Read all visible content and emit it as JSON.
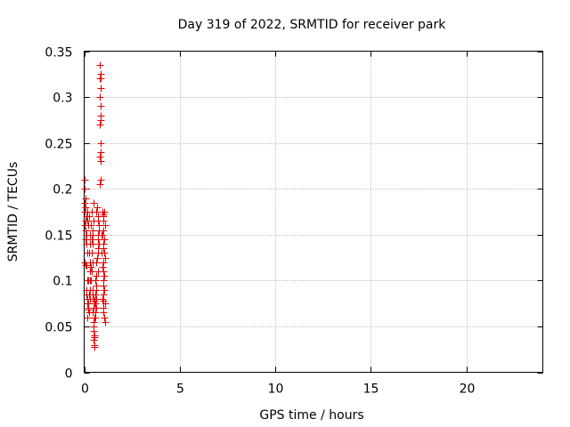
{
  "chart_data": {
    "type": "scatter",
    "title": "Day 319 of 2022, SRMTID for receiver park",
    "xlabel": "GPS time / hours",
    "ylabel": "SRMTID / TECUs",
    "xlim": [
      0,
      24
    ],
    "ylim": [
      0,
      0.35
    ],
    "xticks": [
      0,
      5,
      10,
      15,
      20
    ],
    "yticks": [
      0,
      0.05,
      0.1,
      0.15,
      0.2,
      0.25,
      0.3,
      0.35
    ],
    "xtick_labels": [
      "0",
      "5",
      "10",
      "15",
      "20"
    ],
    "ytick_labels": [
      "0",
      "0.05",
      "0.1",
      "0.15",
      "0.2",
      "0.25",
      "0.3",
      "0.35"
    ],
    "grid": true,
    "marker": "+",
    "color": "#e00000",
    "series": [
      {
        "points": [
          [
            0.02,
            0.21
          ],
          [
            0.03,
            0.2
          ],
          [
            0.05,
            0.19
          ],
          [
            0.03,
            0.185
          ],
          [
            0.08,
            0.18
          ],
          [
            0.02,
            0.175
          ],
          [
            0.1,
            0.17
          ],
          [
            0.05,
            0.165
          ],
          [
            0.03,
            0.16
          ],
          [
            0.08,
            0.155
          ],
          [
            0.1,
            0.15
          ],
          [
            0.05,
            0.145
          ],
          [
            0.12,
            0.14
          ],
          [
            0.15,
            0.13
          ],
          [
            0.02,
            0.12
          ],
          [
            0.05,
            0.117
          ],
          [
            0.1,
            0.117
          ],
          [
            0.15,
            0.1
          ],
          [
            0.2,
            0.1
          ],
          [
            0.1,
            0.09
          ],
          [
            0.12,
            0.085
          ],
          [
            0.15,
            0.08
          ],
          [
            0.18,
            0.075
          ],
          [
            0.2,
            0.07
          ],
          [
            0.22,
            0.068
          ],
          [
            0.25,
            0.065
          ],
          [
            0.15,
            0.06
          ],
          [
            0.2,
            0.075
          ],
          [
            0.3,
            0.08
          ],
          [
            0.25,
            0.085
          ],
          [
            0.3,
            0.09
          ],
          [
            0.35,
            0.1
          ],
          [
            0.4,
            0.11
          ],
          [
            0.35,
            0.115
          ],
          [
            0.45,
            0.12
          ],
          [
            0.4,
            0.13
          ],
          [
            0.45,
            0.14
          ],
          [
            0.38,
            0.145
          ],
          [
            0.42,
            0.15
          ],
          [
            0.45,
            0.155
          ],
          [
            0.35,
            0.16
          ],
          [
            0.5,
            0.165
          ],
          [
            0.4,
            0.175
          ],
          [
            0.48,
            0.185
          ],
          [
            0.42,
            0.09
          ],
          [
            0.45,
            0.085
          ],
          [
            0.5,
            0.08
          ],
          [
            0.52,
            0.078
          ],
          [
            0.55,
            0.075
          ],
          [
            0.5,
            0.07
          ],
          [
            0.45,
            0.065
          ],
          [
            0.55,
            0.06
          ],
          [
            0.5,
            0.055
          ],
          [
            0.48,
            0.05
          ],
          [
            0.5,
            0.045
          ],
          [
            0.52,
            0.04
          ],
          [
            0.55,
            0.038
          ],
          [
            0.5,
            0.035
          ],
          [
            0.52,
            0.03
          ],
          [
            0.55,
            0.028
          ],
          [
            0.6,
            0.085
          ],
          [
            0.62,
            0.08
          ],
          [
            0.65,
            0.09
          ],
          [
            0.6,
            0.1
          ],
          [
            0.65,
            0.105
          ],
          [
            0.7,
            0.11
          ],
          [
            0.62,
            0.12
          ],
          [
            0.68,
            0.125
          ],
          [
            0.7,
            0.13
          ],
          [
            0.72,
            0.135
          ],
          [
            0.75,
            0.14
          ],
          [
            0.7,
            0.145
          ],
          [
            0.72,
            0.15
          ],
          [
            0.75,
            0.155
          ],
          [
            0.78,
            0.16
          ],
          [
            0.7,
            0.165
          ],
          [
            0.72,
            0.17
          ],
          [
            0.65,
            0.175
          ],
          [
            0.68,
            0.18
          ],
          [
            0.65,
            0.095
          ],
          [
            0.6,
            0.075
          ],
          [
            0.62,
            0.07
          ],
          [
            0.58,
            0.065
          ],
          [
            0.6,
            0.06
          ],
          [
            0.8,
            0.335
          ],
          [
            0.85,
            0.325
          ],
          [
            0.82,
            0.32
          ],
          [
            0.88,
            0.32
          ],
          [
            0.85,
            0.31
          ],
          [
            0.82,
            0.3
          ],
          [
            0.85,
            0.29
          ],
          [
            0.88,
            0.28
          ],
          [
            0.85,
            0.275
          ],
          [
            0.82,
            0.27
          ],
          [
            0.85,
            0.25
          ],
          [
            0.88,
            0.24
          ],
          [
            0.85,
            0.23
          ],
          [
            0.82,
            0.235
          ],
          [
            0.85,
            0.21
          ],
          [
            0.82,
            0.205
          ],
          [
            0.95,
            0.175
          ],
          [
            0.98,
            0.172
          ],
          [
            1.0,
            0.17
          ],
          [
            1.05,
            0.175
          ],
          [
            1.02,
            0.165
          ],
          [
            1.08,
            0.16
          ],
          [
            1.0,
            0.155
          ],
          [
            0.95,
            0.15
          ],
          [
            1.05,
            0.145
          ],
          [
            1.0,
            0.14
          ],
          [
            0.98,
            0.135
          ],
          [
            1.05,
            0.13
          ],
          [
            1.08,
            0.125
          ],
          [
            1.0,
            0.12
          ],
          [
            0.95,
            0.115
          ],
          [
            1.02,
            0.11
          ],
          [
            1.05,
            0.105
          ],
          [
            1.0,
            0.1
          ],
          [
            0.98,
            0.095
          ],
          [
            1.05,
            0.09
          ],
          [
            1.0,
            0.085
          ],
          [
            0.95,
            0.08
          ],
          [
            1.02,
            0.078
          ],
          [
            1.08,
            0.075
          ],
          [
            1.0,
            0.07
          ],
          [
            0.98,
            0.065
          ],
          [
            1.05,
            0.06
          ],
          [
            1.1,
            0.055
          ],
          [
            0.9,
            0.15
          ],
          [
            0.92,
            0.13
          ],
          [
            0.3,
            0.1
          ],
          [
            0.28,
            0.11
          ],
          [
            0.32,
            0.12
          ],
          [
            0.25,
            0.13
          ],
          [
            0.3,
            0.14
          ],
          [
            0.28,
            0.15
          ],
          [
            0.22,
            0.16
          ],
          [
            0.25,
            0.17
          ],
          [
            0.18,
            0.175
          ],
          [
            0.15,
            0.165
          ]
        ]
      }
    ]
  }
}
